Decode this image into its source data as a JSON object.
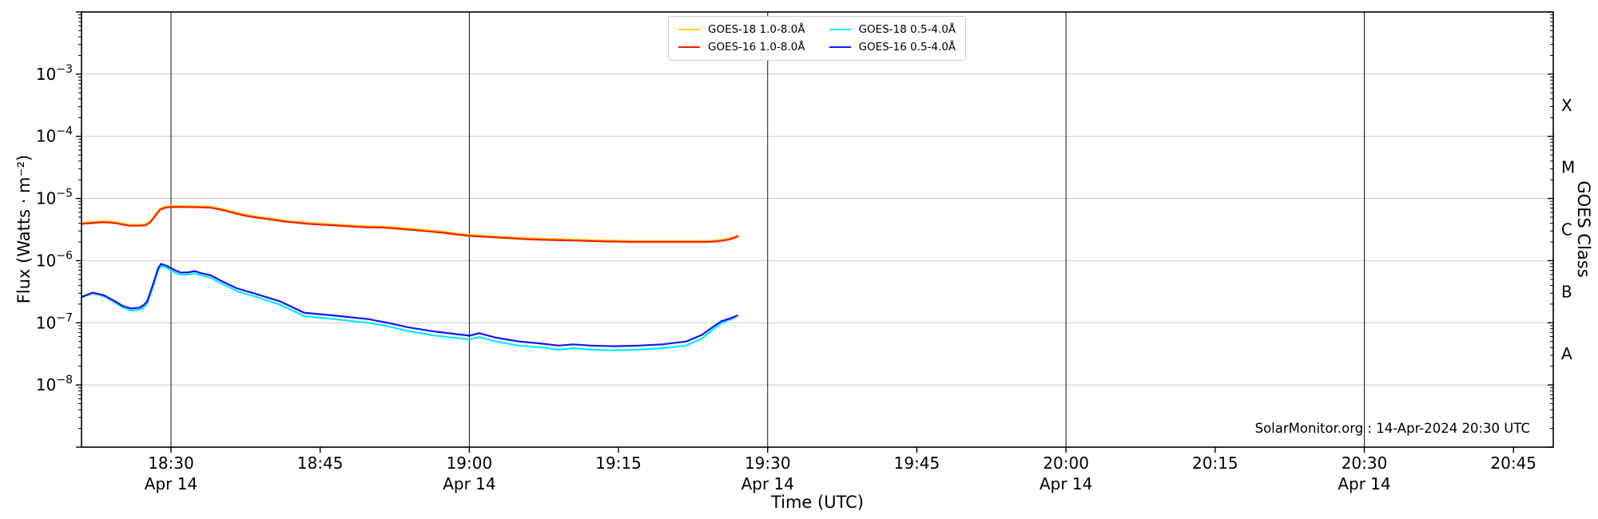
{
  "figure": {
    "background": "#ffffff",
    "watermark": "SolarMonitor.org : 14-Apr-2024 20:30 UTC"
  },
  "chart_data": {
    "type": "line",
    "title": "",
    "xlabel": "Time (UTC)",
    "ylabel": "Flux (Watts · m⁻²)",
    "right_axis_label": "GOES Class",
    "x_unit": "minutes after 18:00 UTC on 14-Apr-2024",
    "xlim": [
      21,
      169
    ],
    "ylim": [
      1e-09,
      0.01
    ],
    "y_scale": "log",
    "grid": {
      "vertical_color": "#111111",
      "horizontal_color": "#c8c8c8"
    },
    "legend_location": "upper center",
    "xticks": [
      {
        "t": 30,
        "label": "18:30",
        "day": "Apr 14",
        "grid": true
      },
      {
        "t": 45,
        "label": "18:45"
      },
      {
        "t": 60,
        "label": "19:00",
        "day": "Apr 14",
        "grid": true
      },
      {
        "t": 75,
        "label": "19:15"
      },
      {
        "t": 90,
        "label": "19:30",
        "day": "Apr 14",
        "grid": true
      },
      {
        "t": 105,
        "label": "19:45"
      },
      {
        "t": 120,
        "label": "20:00",
        "day": "Apr 14",
        "grid": true
      },
      {
        "t": 135,
        "label": "20:15"
      },
      {
        "t": 150,
        "label": "20:30",
        "day": "Apr 14",
        "grid": true
      },
      {
        "t": 165,
        "label": "20:45"
      }
    ],
    "yticks": [
      {
        "v": 0.001,
        "base": "10",
        "exp": "−3"
      },
      {
        "v": 0.0001,
        "base": "10",
        "exp": "−4"
      },
      {
        "v": 1e-05,
        "base": "10",
        "exp": "−5"
      },
      {
        "v": 1e-06,
        "base": "10",
        "exp": "−6"
      },
      {
        "v": 1e-07,
        "base": "10",
        "exp": "−7"
      },
      {
        "v": 1e-08,
        "base": "10",
        "exp": "−8"
      }
    ],
    "goes_class_labels": [
      {
        "label": "X",
        "v": 0.0003162
      },
      {
        "label": "M",
        "v": 3.162e-05
      },
      {
        "label": "C",
        "v": 3.162e-06
      },
      {
        "label": "B",
        "v": 3.162e-07
      },
      {
        "label": "A",
        "v": 3.162e-08
      }
    ],
    "series": [
      {
        "name": "GOES-18 1.0-8.0Å",
        "color": "#ffd000",
        "points": [
          [
            21,
            4.06e-06
          ],
          [
            22.2,
            4.21e-06
          ],
          [
            23.2,
            4.32e-06
          ],
          [
            24.2,
            4.21e-06
          ],
          [
            25.2,
            3.95e-06
          ],
          [
            25.8,
            3.8e-06
          ],
          [
            26.8,
            3.8e-06
          ],
          [
            27.4,
            3.85e-06
          ],
          [
            27.9,
            4.26e-06
          ],
          [
            28.4,
            5.41e-06
          ],
          [
            28.9,
            6.86e-06
          ],
          [
            29.4,
            7.38e-06
          ],
          [
            30,
            7.54e-06
          ],
          [
            31,
            7.59e-06
          ],
          [
            32,
            7.54e-06
          ],
          [
            33,
            7.49e-06
          ],
          [
            34,
            7.38e-06
          ],
          [
            35,
            6.86e-06
          ],
          [
            36.2,
            6.14e-06
          ],
          [
            37.4,
            5.51e-06
          ],
          [
            38.7,
            5.1e-06
          ],
          [
            40,
            4.78e-06
          ],
          [
            41.2,
            4.47e-06
          ],
          [
            42.4,
            4.26e-06
          ],
          [
            43.8,
            4.06e-06
          ],
          [
            45.5,
            3.9e-06
          ],
          [
            47.5,
            3.74e-06
          ],
          [
            49.5,
            3.59e-06
          ],
          [
            51.4,
            3.54e-06
          ],
          [
            53.5,
            3.33e-06
          ],
          [
            55.5,
            3.12e-06
          ],
          [
            57.5,
            2.91e-06
          ],
          [
            59,
            2.7e-06
          ],
          [
            60,
            2.6e-06
          ],
          [
            62,
            2.5e-06
          ],
          [
            64,
            2.39e-06
          ],
          [
            66,
            2.29e-06
          ],
          [
            68,
            2.24e-06
          ],
          [
            70.6,
            2.18e-06
          ],
          [
            73,
            2.13e-06
          ],
          [
            76.2,
            2.08e-06
          ],
          [
            79,
            2.08e-06
          ],
          [
            81.8,
            2.08e-06
          ],
          [
            84,
            2.08e-06
          ],
          [
            85,
            2.13e-06
          ],
          [
            86.2,
            2.29e-06
          ],
          [
            87,
            2.55e-06
          ]
        ]
      },
      {
        "name": "GOES-16 1.0-8.0Å",
        "color": "#ff1a00",
        "points": [
          [
            21,
            3.9e-06
          ],
          [
            22.2,
            4.05e-06
          ],
          [
            23.2,
            4.15e-06
          ],
          [
            24.2,
            4.05e-06
          ],
          [
            25.2,
            3.8e-06
          ],
          [
            25.8,
            3.65e-06
          ],
          [
            26.8,
            3.65e-06
          ],
          [
            27.4,
            3.7e-06
          ],
          [
            27.9,
            4.1e-06
          ],
          [
            28.4,
            5.2e-06
          ],
          [
            28.9,
            6.6e-06
          ],
          [
            29.4,
            7.1e-06
          ],
          [
            30,
            7.25e-06
          ],
          [
            31,
            7.3e-06
          ],
          [
            32,
            7.25e-06
          ],
          [
            33,
            7.2e-06
          ],
          [
            34,
            7.1e-06
          ],
          [
            35,
            6.6e-06
          ],
          [
            36.2,
            5.9e-06
          ],
          [
            37.4,
            5.3e-06
          ],
          [
            38.7,
            4.9e-06
          ],
          [
            40,
            4.6e-06
          ],
          [
            41.2,
            4.3e-06
          ],
          [
            42.4,
            4.1e-06
          ],
          [
            43.8,
            3.9e-06
          ],
          [
            45.5,
            3.75e-06
          ],
          [
            47.5,
            3.6e-06
          ],
          [
            49.5,
            3.45e-06
          ],
          [
            51.4,
            3.4e-06
          ],
          [
            53.5,
            3.2e-06
          ],
          [
            55.5,
            3e-06
          ],
          [
            57.5,
            2.8e-06
          ],
          [
            59,
            2.6e-06
          ],
          [
            60,
            2.5e-06
          ],
          [
            62,
            2.4e-06
          ],
          [
            64,
            2.3e-06
          ],
          [
            66,
            2.2e-06
          ],
          [
            68,
            2.15e-06
          ],
          [
            70.6,
            2.1e-06
          ],
          [
            73,
            2.05e-06
          ],
          [
            76.2,
            2e-06
          ],
          [
            79,
            2e-06
          ],
          [
            81.8,
            2e-06
          ],
          [
            84,
            2e-06
          ],
          [
            85,
            2.05e-06
          ],
          [
            86.2,
            2.2e-06
          ],
          [
            87,
            2.45e-06
          ]
        ]
      },
      {
        "name": "GOES-18 0.5-4.0Å",
        "color": "#00eeff",
        "points": [
          [
            21,
            2.55e-07
          ],
          [
            22.1,
            3e-07
          ],
          [
            23.2,
            2.7e-07
          ],
          [
            24.2,
            2.2e-07
          ],
          [
            25.2,
            1.75e-07
          ],
          [
            26,
            1.57e-07
          ],
          [
            26.8,
            1.62e-07
          ],
          [
            27.2,
            1.75e-07
          ],
          [
            27.6,
            2e-07
          ],
          [
            28.2,
            3.8e-07
          ],
          [
            28.7,
            6.9e-07
          ],
          [
            29,
            8.3e-07
          ],
          [
            29.6,
            7.6e-07
          ],
          [
            30.4,
            6.4e-07
          ],
          [
            31,
            5.9e-07
          ],
          [
            31.8,
            6e-07
          ],
          [
            32.4,
            6.2e-07
          ],
          [
            33,
            5.8e-07
          ],
          [
            34,
            5.3e-07
          ],
          [
            35.2,
            4.2e-07
          ],
          [
            36.6,
            3.25e-07
          ],
          [
            38.6,
            2.6e-07
          ],
          [
            41,
            1.95e-07
          ],
          [
            43.4,
            1.28e-07
          ],
          [
            46.6,
            1.14e-07
          ],
          [
            49.8,
            1e-07
          ],
          [
            51.8,
            8.8e-08
          ],
          [
            53.8,
            7.4e-08
          ],
          [
            56.6,
            6.2e-08
          ],
          [
            60,
            5.4e-08
          ],
          [
            61,
            5.9e-08
          ],
          [
            62.6,
            5e-08
          ],
          [
            65,
            4.3e-08
          ],
          [
            67.4,
            4e-08
          ],
          [
            69,
            3.7e-08
          ],
          [
            70.4,
            3.9e-08
          ],
          [
            72.2,
            3.7e-08
          ],
          [
            74.6,
            3.6e-08
          ],
          [
            77,
            3.7e-08
          ],
          [
            79.4,
            3.9e-08
          ],
          [
            81.8,
            4.3e-08
          ],
          [
            83.4,
            5.6e-08
          ],
          [
            84.5,
            7.8e-08
          ],
          [
            85.3,
            9.8e-08
          ],
          [
            86.5,
            1.18e-07
          ],
          [
            87,
            1.32e-07
          ]
        ]
      },
      {
        "name": "GOES-16 0.5-4.0Å",
        "color": "#1414ff",
        "points": [
          [
            21,
            2.6e-07
          ],
          [
            22.1,
            3.05e-07
          ],
          [
            23.2,
            2.8e-07
          ],
          [
            24.2,
            2.3e-07
          ],
          [
            25.2,
            1.85e-07
          ],
          [
            26,
            1.7e-07
          ],
          [
            26.8,
            1.75e-07
          ],
          [
            27.2,
            1.9e-07
          ],
          [
            27.6,
            2.2e-07
          ],
          [
            28.2,
            4.2e-07
          ],
          [
            28.7,
            7.5e-07
          ],
          [
            29,
            8.9e-07
          ],
          [
            29.6,
            8.2e-07
          ],
          [
            30.4,
            7e-07
          ],
          [
            31,
            6.4e-07
          ],
          [
            31.8,
            6.5e-07
          ],
          [
            32.4,
            6.8e-07
          ],
          [
            33,
            6.3e-07
          ],
          [
            34,
            5.8e-07
          ],
          [
            35.2,
            4.6e-07
          ],
          [
            36.6,
            3.6e-07
          ],
          [
            38.6,
            2.9e-07
          ],
          [
            41,
            2.2e-07
          ],
          [
            43.4,
            1.45e-07
          ],
          [
            46.6,
            1.3e-07
          ],
          [
            49.8,
            1.15e-07
          ],
          [
            51.8,
            1e-07
          ],
          [
            53.8,
            8.5e-08
          ],
          [
            56.6,
            7.2e-08
          ],
          [
            60,
            6.2e-08
          ],
          [
            61,
            6.8e-08
          ],
          [
            62.6,
            5.8e-08
          ],
          [
            65,
            5e-08
          ],
          [
            67.4,
            4.6e-08
          ],
          [
            69,
            4.3e-08
          ],
          [
            70.4,
            4.5e-08
          ],
          [
            72.2,
            4.3e-08
          ],
          [
            74.6,
            4.2e-08
          ],
          [
            77,
            4.3e-08
          ],
          [
            79.4,
            4.5e-08
          ],
          [
            81.8,
            5e-08
          ],
          [
            83.4,
            6.4e-08
          ],
          [
            84.5,
            8.6e-08
          ],
          [
            85.3,
            1.05e-07
          ],
          [
            86.5,
            1.22e-07
          ],
          [
            86.9,
            1.3e-07
          ]
        ]
      }
    ]
  }
}
